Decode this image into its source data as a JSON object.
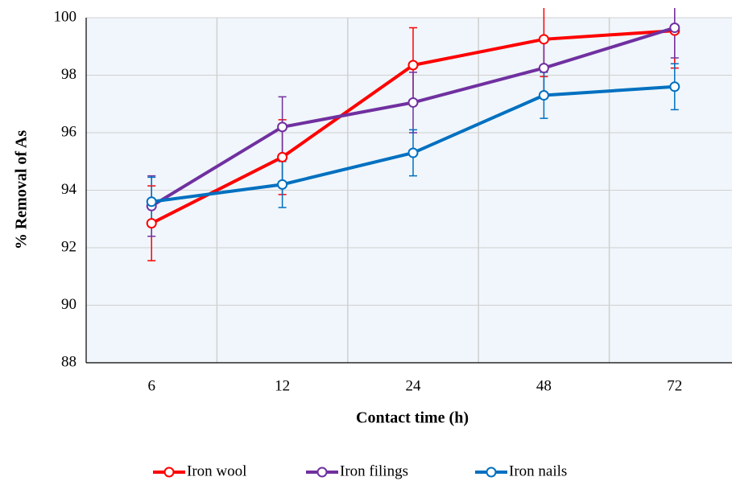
{
  "chart_data": {
    "type": "line",
    "x_label": "Contact time (h)",
    "y_label": "% Removal of As",
    "categories": [
      "6",
      "12",
      "24",
      "48",
      "72"
    ],
    "series": [
      {
        "name": "Iron wool",
        "color": "#ff0000",
        "values": [
          92.85,
          95.15,
          98.35,
          99.25,
          99.55
        ],
        "errors": [
          1.3,
          1.3,
          1.3,
          1.3,
          1.3
        ]
      },
      {
        "name": "Iron filings",
        "color": "#7030a0",
        "values": [
          93.45,
          96.2,
          97.05,
          98.25,
          99.65
        ],
        "errors": [
          1.05,
          1.05,
          1.05,
          1.05,
          1.05
        ]
      },
      {
        "name": "Iron nails",
        "color": "#0070c0",
        "values": [
          93.6,
          94.2,
          95.3,
          97.3,
          97.6
        ],
        "errors": [
          0.85,
          0.8,
          0.8,
          0.8,
          0.8
        ]
      }
    ],
    "ylim": [
      88,
      100
    ],
    "yticks": [
      88,
      90,
      92,
      94,
      96,
      98,
      100
    ],
    "grid": true,
    "legend": "bottom"
  }
}
